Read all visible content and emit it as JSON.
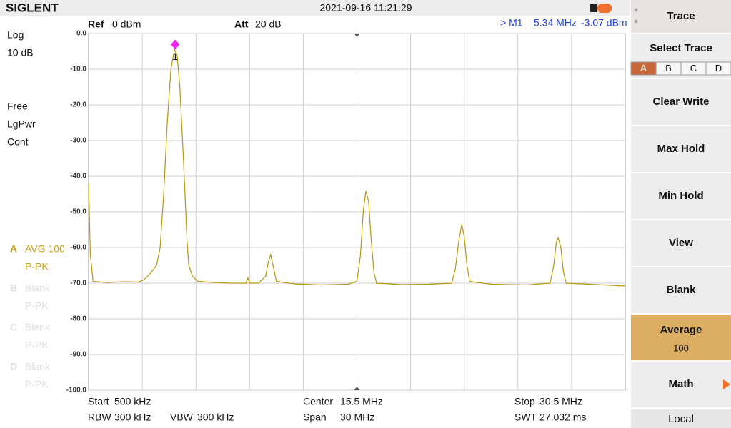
{
  "header": {
    "brand": "SIGLENT",
    "datetime": "2021-09-16 11:21:29"
  },
  "info": {
    "ref_label": "Ref",
    "ref_value": "0 dBm",
    "att_label": "Att",
    "att_value": "20 dB",
    "marker_name": "> M1",
    "marker_x": "5.34 MHz",
    "marker_y": "-3.07 dBm"
  },
  "left_panel": [
    "Log",
    "10 dB",
    "Free",
    "LgPwr",
    "Cont"
  ],
  "traces": [
    {
      "letter": "A",
      "mode": "AVG 100",
      "detector": "P-PK"
    },
    {
      "letter": "B",
      "mode": "Blank",
      "detector": "P-PK"
    },
    {
      "letter": "C",
      "mode": "Blank",
      "detector": "P-PK"
    },
    {
      "letter": "D",
      "mode": "Blank",
      "detector": "P-PK"
    }
  ],
  "chart_data": {
    "type": "line",
    "color": "#b8960c",
    "x": [
      0.5,
      0.6,
      0.75,
      1.5,
      2.5,
      3.3,
      3.6,
      4.0,
      4.3,
      4.5,
      4.7,
      4.9,
      5.1,
      5.3,
      5.45,
      5.6,
      5.8,
      6.0,
      6.1,
      6.3,
      6.6,
      7.5,
      8.5,
      9.3,
      9.4,
      9.5,
      10.0,
      10.4,
      10.55,
      10.68,
      10.85,
      11.0,
      12.0,
      13.5,
      15.0,
      15.5,
      15.7,
      15.85,
      16.0,
      16.15,
      16.3,
      16.45,
      16.6,
      18.0,
      19.5,
      20.8,
      21.0,
      21.2,
      21.36,
      21.5,
      21.65,
      21.8,
      23.0,
      25.0,
      26.3,
      26.5,
      26.65,
      26.75,
      26.9,
      27.05,
      27.2,
      28.5,
      30.5
    ],
    "values": [
      -42,
      -62,
      -69.5,
      -69.8,
      -69.6,
      -69.7,
      -69,
      -67,
      -65,
      -60,
      -45,
      -25,
      -10,
      -4.5,
      -6,
      -15,
      -35,
      -58,
      -65,
      -68,
      -69.5,
      -69.8,
      -70,
      -70,
      -68.5,
      -70,
      -70,
      -68,
      -64,
      -62,
      -66,
      -69.5,
      -70.2,
      -70.5,
      -70.3,
      -69.5,
      -62,
      -50,
      -44.2,
      -47,
      -58,
      -67,
      -70,
      -70.4,
      -70.3,
      -70,
      -66,
      -58,
      -53.5,
      -57,
      -65,
      -69.5,
      -70.3,
      -70.5,
      -70,
      -65,
      -58.5,
      -57.2,
      -60,
      -67,
      -70,
      -70.3,
      -70.8
    ],
    "xlim": [
      0.5,
      30.5
    ],
    "ylim": [
      -100,
      0
    ],
    "yticks": [
      {
        "value": 0,
        "label": "0.0"
      },
      {
        "value": -10,
        "label": "-10.0"
      },
      {
        "value": -20,
        "label": "-20.0"
      },
      {
        "value": -30,
        "label": "-30.0"
      },
      {
        "value": -40,
        "label": "-40.0"
      },
      {
        "value": -50,
        "label": "-50.0"
      },
      {
        "value": -60,
        "label": "-60.0"
      },
      {
        "value": -70,
        "label": "-70.0"
      },
      {
        "value": -80,
        "label": "-80.0"
      },
      {
        "value": -90,
        "label": "-90.0"
      },
      {
        "value": -100,
        "label": "-100.0"
      }
    ],
    "grid": true,
    "marker": {
      "label": "1",
      "x": 5.34,
      "y": -3.07,
      "color": "#ee22ee"
    }
  },
  "footer": {
    "start_label": "Start",
    "start_value": "500 kHz",
    "center_label": "Center",
    "center_value": "15.5 MHz",
    "stop_label": "Stop",
    "stop_value": "30.5 MHz",
    "rbw_label": "RBW",
    "rbw_value": "300 kHz",
    "vbw_label": "VBW",
    "vbw_value": "300 kHz",
    "span_label": "Span",
    "span_value": "30 MHz",
    "swt_label": "SWT",
    "swt_value": "27.032 ms"
  },
  "menu": {
    "title": "Trace",
    "select_title": "Select Trace",
    "tabs": [
      "A",
      "B",
      "C",
      "D"
    ],
    "buttons": [
      {
        "label": "Clear Write"
      },
      {
        "label": "Max Hold"
      },
      {
        "label": "Min Hold"
      },
      {
        "label": "View"
      },
      {
        "label": "Blank"
      },
      {
        "label": "Average",
        "value": "100"
      },
      {
        "label": "Math"
      }
    ],
    "local": "Local"
  }
}
